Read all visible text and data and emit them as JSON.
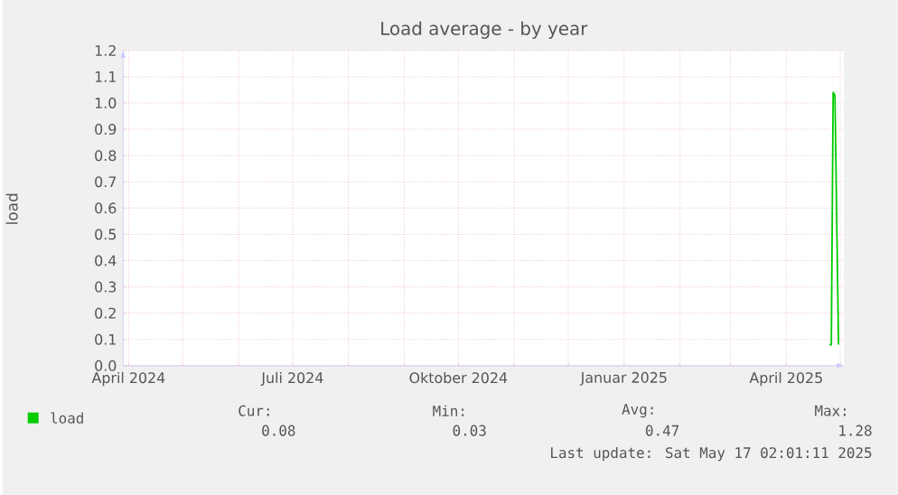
{
  "chart_data": {
    "type": "line",
    "title": "Load average - by year",
    "ylabel": "load",
    "xlim": [
      "2024-03-29",
      "2025-05-03"
    ],
    "ylim": [
      0,
      1.2
    ],
    "yticks": [
      {
        "value": 0,
        "label": "0.0"
      },
      {
        "value": 0.1,
        "label": "0.1"
      },
      {
        "value": 0.2,
        "label": "0.2"
      },
      {
        "value": 0.3,
        "label": "0.3"
      },
      {
        "value": 0.4,
        "label": "0.4"
      },
      {
        "value": 0.5,
        "label": "0.5"
      },
      {
        "value": 0.6,
        "label": "0.6"
      },
      {
        "value": 0.7,
        "label": "0.7"
      },
      {
        "value": 0.8,
        "label": "0.8"
      },
      {
        "value": 0.9,
        "label": "0.9"
      },
      {
        "value": 1.0,
        "label": "1.0"
      },
      {
        "value": 1.1,
        "label": "1.1"
      },
      {
        "value": 1.2,
        "label": "1.2"
      }
    ],
    "xticks": [
      {
        "value": "2024-04-01",
        "label": "April 2024"
      },
      {
        "value": "2024-05-01",
        "label": null
      },
      {
        "value": "2024-06-01",
        "label": null
      },
      {
        "value": "2024-07-01",
        "label": "Juli 2024"
      },
      {
        "value": "2024-08-01",
        "label": null
      },
      {
        "value": "2024-09-01",
        "label": null
      },
      {
        "value": "2024-10-01",
        "label": "Oktober 2024"
      },
      {
        "value": "2024-11-01",
        "label": null
      },
      {
        "value": "2024-12-01",
        "label": null
      },
      {
        "value": "2025-01-01",
        "label": "Januar 2025"
      },
      {
        "value": "2025-02-01",
        "label": null
      },
      {
        "value": "2025-03-01",
        "label": null
      },
      {
        "value": "2025-04-01",
        "label": "April 2025"
      },
      {
        "value": "2025-05-01",
        "label": null
      }
    ],
    "grid": true,
    "legend": "bottom",
    "series": [
      {
        "name": "load",
        "color": "#00cc00",
        "x": [
          "2025-04-25",
          "2025-04-26",
          "2025-04-27",
          "2025-04-28",
          "2025-04-30"
        ],
        "values": [
          0.08,
          0.08,
          1.04,
          1.03,
          0.08
        ]
      }
    ],
    "annotations": [
      "Cur:",
      "Min:",
      "Avg:",
      "Max:",
      "0.08",
      "0.03",
      "0.47",
      "1.28",
      "Last update: Sat May 17 02:01:11 2025"
    ]
  }
}
